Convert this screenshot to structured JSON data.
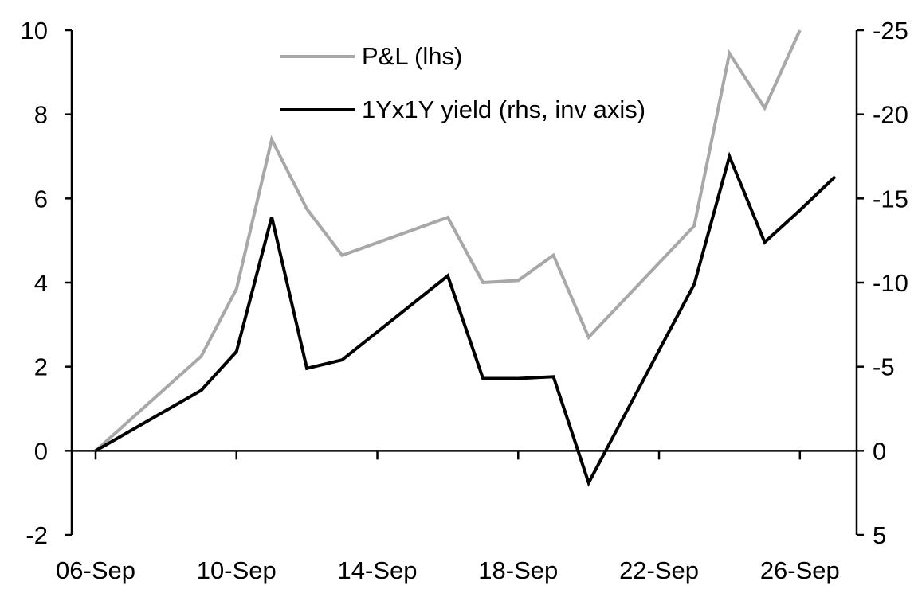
{
  "chart_data": {
    "type": "line",
    "title": "",
    "background": "#ffffff",
    "grid": false,
    "legend_position": "top-center-left",
    "legend": [
      {
        "label": "P&L (lhs)",
        "color": "#a8a8a8"
      },
      {
        "label": "1Yx1Y yield (rhs, inv axis)",
        "color": "#000000"
      }
    ],
    "x_axis": {
      "tick_labels": [
        "06-Sep",
        "10-Sep",
        "14-Sep",
        "18-Sep",
        "22-Sep",
        "26-Sep"
      ],
      "tick_days": [
        6,
        10,
        14,
        18,
        22,
        26
      ],
      "day_min": 6,
      "day_max": 27
    },
    "left_axis": {
      "min": -2,
      "max": 10,
      "ticks": [
        10,
        8,
        6,
        4,
        2,
        0,
        -2
      ]
    },
    "right_axis": {
      "min": 5,
      "max": -25,
      "ticks": [
        -25,
        -20,
        -15,
        -10,
        -5,
        0,
        5
      ],
      "inverted": true
    },
    "series": [
      {
        "name": "P&L (lhs)",
        "axis": "lhs",
        "color": "#a8a8a8",
        "dates": [
          "06-Sep",
          "09-Sep",
          "10-Sep",
          "11-Sep",
          "12-Sep",
          "13-Sep",
          "16-Sep",
          "17-Sep",
          "18-Sep",
          "19-Sep",
          "20-Sep",
          "23-Sep",
          "24-Sep",
          "25-Sep",
          "26-Sep"
        ],
        "days": [
          6,
          9,
          10,
          11,
          12,
          13,
          16,
          17,
          18,
          19,
          20,
          23,
          24,
          25,
          26
        ],
        "values": [
          0,
          2.25,
          3.85,
          7.4,
          5.75,
          4.65,
          5.55,
          4.0,
          4.05,
          4.65,
          2.7,
          5.35,
          9.45,
          8.15,
          10.0
        ]
      },
      {
        "name": "1Yx1Y yield (rhs, inv axis)",
        "axis": "rhs",
        "color": "#000000",
        "dates": [
          "06-Sep",
          "09-Sep",
          "10-Sep",
          "11-Sep",
          "12-Sep",
          "13-Sep",
          "16-Sep",
          "17-Sep",
          "18-Sep",
          "19-Sep",
          "20-Sep",
          "23-Sep",
          "24-Sep",
          "25-Sep",
          "26-Sep",
          "27-Sep"
        ],
        "days": [
          6,
          9,
          10,
          11,
          12,
          13,
          16,
          17,
          18,
          19,
          20,
          23,
          24,
          25,
          26,
          27
        ],
        "values": [
          0,
          -3.6,
          -5.9,
          -13.9,
          -4.9,
          -5.4,
          -10.4,
          -4.3,
          -4.3,
          -4.4,
          1.9,
          -9.9,
          -17.5,
          -12.4,
          -14.3,
          -16.3
        ]
      }
    ]
  }
}
